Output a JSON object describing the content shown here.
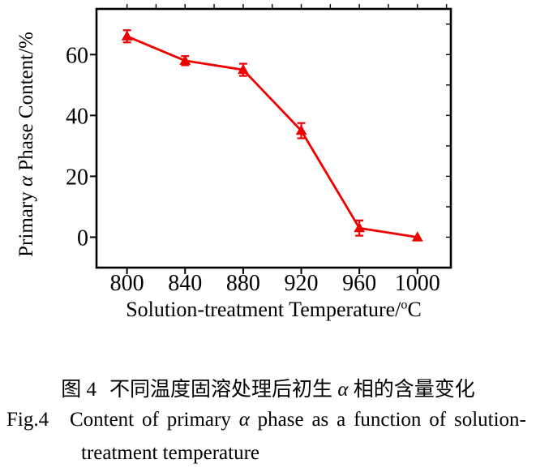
{
  "accent_color": "#ee0000",
  "chart_data": {
    "type": "line",
    "series_name": "Primary α phase content",
    "x": [
      800,
      840,
      880,
      920,
      960,
      1000
    ],
    "y": [
      66,
      58,
      55,
      35,
      3,
      0
    ],
    "y_err": [
      2,
      1.5,
      2,
      2.5,
      2.5,
      0
    ],
    "marker": "filled-triangle-up",
    "line_color": "#ee0000",
    "xlabel": "Solution-treatment Temperature/°C",
    "ylabel": "Primary α Phase Content/%",
    "xlim": [
      779,
      1023
    ],
    "ylim": [
      -10,
      75
    ],
    "x_major_ticks": [
      800,
      840,
      880,
      920,
      960,
      1000
    ],
    "y_major_ticks": [
      0,
      20,
      40,
      60
    ],
    "top_minor_tick_step": 20,
    "right_minor_tick_step": 10,
    "grid": false,
    "legend": false
  },
  "axis": {
    "xlabel_prefix": "Solution-treatment Temperature/",
    "xlabel_sup": "o",
    "xlabel_suffix": "C",
    "ylabel_prefix": "Primary ",
    "ylabel_alpha": "α",
    "ylabel_suffix": " Phase Content/%"
  },
  "caption": {
    "zh_fig_no": "图 4",
    "zh_prefix": "不同温度固溶处理后初生 ",
    "zh_alpha": "α",
    "zh_suffix": " 相的含量变化",
    "en_line1_words": [
      "Fig.4",
      "Content",
      "of",
      "primary",
      "α",
      "phase",
      "as",
      "a",
      "function",
      "of",
      "solution-"
    ],
    "en_line2": "treatment temperature"
  }
}
